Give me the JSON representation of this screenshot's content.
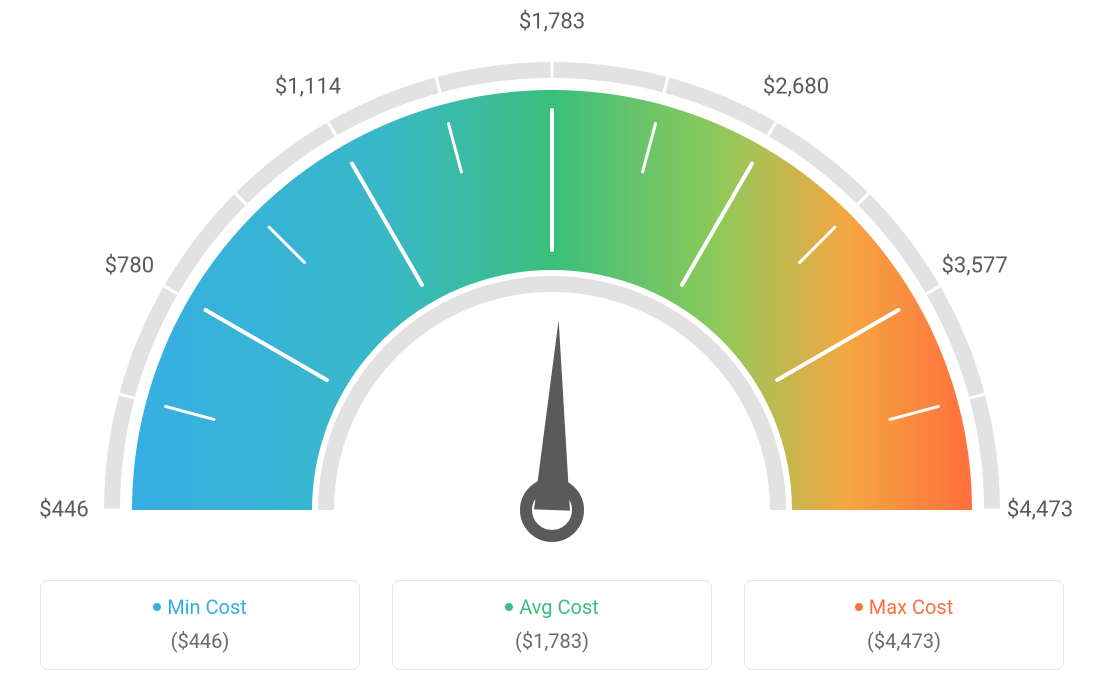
{
  "gauge": {
    "type": "gauge",
    "tick_labels": [
      "$446",
      "$780",
      "$1,114",
      "$1,783",
      "$2,680",
      "$3,577",
      "$4,473"
    ],
    "tick_angles_deg": [
      180,
      150,
      120,
      90,
      60,
      30,
      0
    ],
    "needle_angle_deg": 88,
    "colors": {
      "min": "#37aee3",
      "avg": "#3bbf7c",
      "max": "#ff6f3c",
      "track": "#e2e2e2",
      "tick_major": "#ffffff",
      "tick_minor": "#ffffff",
      "needle": "#5a5a5a",
      "label_text": "#5a5a5a"
    },
    "outer_radius": 420,
    "inner_radius": 240,
    "track_outer_radius": 448,
    "track_thickness": 16,
    "label_fontsize": 22,
    "background_color": "#ffffff"
  },
  "legend": {
    "items": [
      {
        "key": "min",
        "title": "Min Cost",
        "value": "($446)",
        "color": "#37aee3"
      },
      {
        "key": "avg",
        "title": "Avg Cost",
        "value": "($1,783)",
        "color": "#3bbf7c"
      },
      {
        "key": "max",
        "title": "Max Cost",
        "value": "($4,473)",
        "color": "#ff6f3c"
      }
    ],
    "card_border_color": "#e6e6e6",
    "card_border_radius": 8,
    "value_color": "#6a6a6a"
  }
}
